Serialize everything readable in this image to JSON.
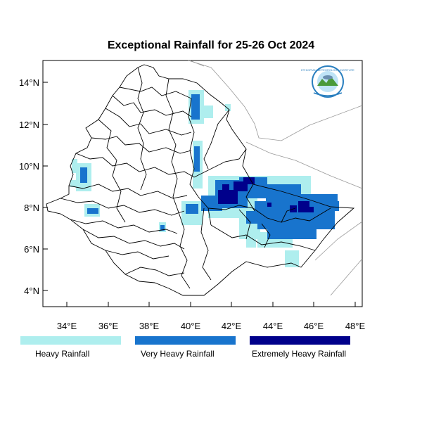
{
  "title": "Exceptional Rainfall for 25-26 Oct 2024",
  "axes": {
    "x_ticks": [
      "34°E",
      "36°E",
      "38°E",
      "40°E",
      "42°E",
      "44°E",
      "46°E",
      "48°E"
    ],
    "y_ticks": [
      "14°N",
      "12°N",
      "10°N",
      "8°N",
      "6°N",
      "4°N"
    ]
  },
  "legend": {
    "items": [
      {
        "label": "Heavy Rainfall",
        "color": "#aeeeee"
      },
      {
        "label": "Very Heavy Rainfall",
        "color": "#1874cd"
      },
      {
        "label": "Extremely Heavy Rainfall",
        "color": "#00008b"
      }
    ]
  },
  "logo": {
    "text": "ETHIOPIAN METEOROLOGY INSTITUTE"
  }
}
